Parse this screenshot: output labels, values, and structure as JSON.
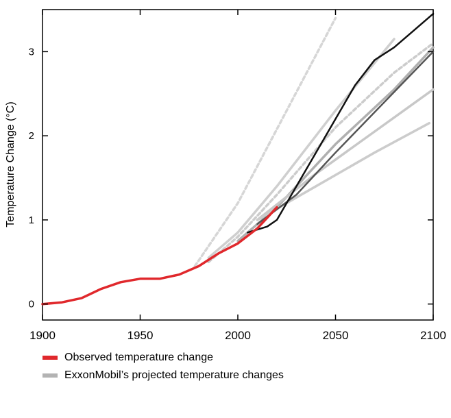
{
  "chart_data": {
    "type": "line",
    "title": "",
    "xlabel": "",
    "ylabel": "Temperature Change (°C)",
    "xlim": [
      1900,
      2100
    ],
    "ylim": [
      -0.19,
      3.5
    ],
    "xticks": [
      1900,
      1950,
      2000,
      2050,
      2100
    ],
    "yticks": [
      0,
      1,
      2,
      3
    ],
    "grid": false,
    "legend_position": "bottom-left",
    "colors": {
      "observed": "#e0282c",
      "projected": "#b3b3b3"
    },
    "legend": [
      {
        "label": "Observed temperature change",
        "color": "#e0282c"
      },
      {
        "label": "ExxonMobil’s projected temperature changes",
        "color": "#b3b3b3"
      }
    ],
    "series": [
      {
        "name": "Projection (dashed, steep)",
        "group": "projected",
        "color": "#d6d6d6",
        "dash": true,
        "x": [
          1978,
          2000,
          2025,
          2050
        ],
        "y": [
          0.45,
          1.2,
          2.3,
          3.4
        ]
      },
      {
        "name": "Projection (dashed)",
        "group": "projected",
        "color": "#cccccc",
        "dash": true,
        "x": [
          1985,
          2000,
          2020,
          2050,
          2080,
          2100
        ],
        "y": [
          0.5,
          0.8,
          1.3,
          2.1,
          2.75,
          3.1
        ]
      },
      {
        "name": "Projection (light, high)",
        "group": "projected",
        "color": "#cfcfcf",
        "dash": false,
        "x": [
          1985,
          2000,
          2020,
          2050,
          2080
        ],
        "y": [
          0.55,
          0.85,
          1.4,
          2.3,
          3.15
        ]
      },
      {
        "name": "Projection (gray)",
        "group": "projected",
        "color": "#b0b0b0",
        "dash": false,
        "x": [
          2000,
          2020,
          2050,
          2080,
          2100
        ],
        "y": [
          0.75,
          1.15,
          1.9,
          2.55,
          3.05
        ]
      },
      {
        "name": "Projection (light, mid)",
        "group": "projected",
        "color": "#c8c8c8",
        "dash": false,
        "x": [
          2010,
          2040,
          2070,
          2100
        ],
        "y": [
          1.0,
          1.55,
          2.05,
          2.55
        ]
      },
      {
        "name": "Projection (light, low)",
        "group": "projected",
        "color": "#cccccc",
        "dash": false,
        "x": [
          2010,
          2040,
          2070,
          2098
        ],
        "y": [
          1.0,
          1.4,
          1.8,
          2.15
        ]
      },
      {
        "name": "Projection (dark gray)",
        "group": "projected",
        "color": "#555555",
        "dash": false,
        "x": [
          2010,
          2030,
          2050,
          2075,
          2100
        ],
        "y": [
          0.95,
          1.3,
          1.8,
          2.4,
          3.0
        ]
      },
      {
        "name": "Projection (black)",
        "group": "projected",
        "color": "#111111",
        "dash": false,
        "x": [
          2005,
          2015,
          2020,
          2030,
          2040,
          2050,
          2060,
          2070,
          2080,
          2090,
          2100
        ],
        "y": [
          0.85,
          0.92,
          1.0,
          1.4,
          1.8,
          2.2,
          2.6,
          2.9,
          3.05,
          3.25,
          3.45
        ]
      },
      {
        "name": "Observed temperature change",
        "group": "observed",
        "color": "#e0282c",
        "dash": false,
        "x": [
          1900,
          1910,
          1920,
          1930,
          1940,
          1950,
          1960,
          1970,
          1980,
          1990,
          2000,
          2010,
          2020
        ],
        "y": [
          0,
          0.02,
          0.07,
          0.18,
          0.26,
          0.3,
          0.3,
          0.35,
          0.45,
          0.6,
          0.72,
          0.9,
          1.15
        ]
      }
    ]
  }
}
